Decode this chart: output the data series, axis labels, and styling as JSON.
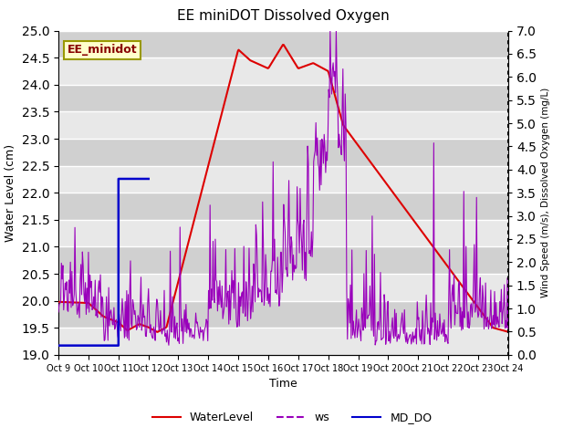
{
  "title": "EE miniDOT Dissolved Oxygen",
  "xlabel": "Time",
  "ylabel_left": "Water Level (cm)",
  "ylabel_right": "Wind Speed (m/s), Dissolved Oxygen (mg/L)",
  "annotation": "EE_minidot",
  "ylim_left": [
    19.0,
    25.0
  ],
  "ylim_right": [
    0.0,
    7.0
  ],
  "yticks_left": [
    19.0,
    19.5,
    20.0,
    20.5,
    21.0,
    21.5,
    22.0,
    22.5,
    23.0,
    23.5,
    24.0,
    24.5,
    25.0
  ],
  "yticks_right": [
    0.0,
    0.5,
    1.0,
    1.5,
    2.0,
    2.5,
    3.0,
    3.5,
    4.0,
    4.5,
    5.0,
    5.5,
    6.0,
    6.5,
    7.0
  ],
  "xtick_labels": [
    "Oct 9",
    "Oct 10",
    "Oct 11",
    "Oct 12",
    "Oct 13",
    "Oct 14",
    "Oct 15",
    "Oct 16",
    "Oct 17",
    "Oct 18",
    "Oct 19",
    "Oct 20",
    "Oct 21",
    "Oct 22",
    "Oct 23",
    "Oct 24"
  ],
  "bg_color": "#d8d8d8",
  "band_color_light": "#e8e8e8",
  "band_color_dark": "#d0d0d0",
  "wl_color": "#dd0000",
  "ws_color": "#9900bb",
  "do_color": "#0000cc",
  "annotation_facecolor": "#ffffcc",
  "annotation_edgecolor": "#999900"
}
